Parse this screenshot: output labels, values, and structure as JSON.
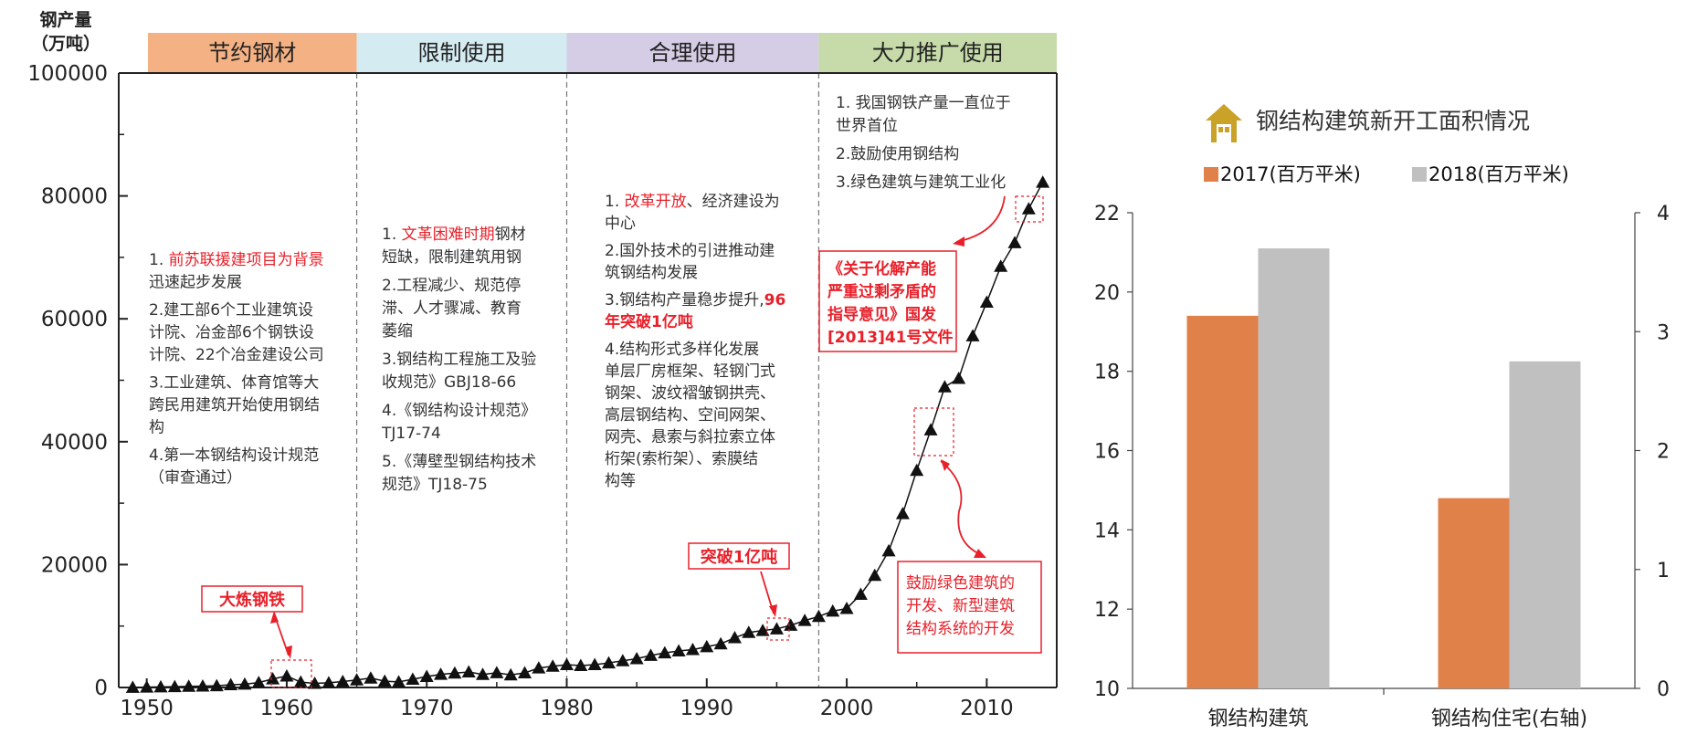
{
  "chart_data": [
    {
      "type": "scatter",
      "ylabel_line1": "钢产量",
      "ylabel_line2": "（万吨）",
      "yticks": [
        "0",
        "20000",
        "40000",
        "60000",
        "80000",
        "100000"
      ],
      "xticks": [
        "1950",
        "1960",
        "1970",
        "1980",
        "1990",
        "2000",
        "2010"
      ],
      "xlim": [
        1948,
        2015
      ],
      "ylim": [
        0,
        100000
      ],
      "marker": "triangle",
      "periods": [
        {
          "label": "节约钢材",
          "start": 1948,
          "end": 1965,
          "color": "#f4b183"
        },
        {
          "label": "限制使用",
          "start": 1965,
          "end": 1980,
          "color": "#d4ebf2"
        },
        {
          "label": "合理使用",
          "start": 1980,
          "end": 1998,
          "color": "#d5cce6"
        },
        {
          "label": "大力推广使用",
          "start": 1998,
          "end": 2015,
          "color": "#c6dba9"
        }
      ],
      "notes": {
        "p1": [
          [
            {
              "t": "1. ",
              "s": "n"
            },
            {
              "t": "前苏联援建项目为背景",
              "s": "r"
            }
          ],
          [
            {
              "t": "迅速起步发展",
              "s": "n"
            }
          ],
          [
            {
              "t": "2.建工部6个工业建筑设",
              "s": "n"
            }
          ],
          [
            {
              "t": "计院、冶金部6个钢铁设",
              "s": "n"
            }
          ],
          [
            {
              "t": "计院、22个冶金建设公司",
              "s": "n"
            }
          ],
          [
            {
              "t": "3.工业建筑、体育馆等大",
              "s": "n"
            }
          ],
          [
            {
              "t": "跨民用建筑开始使用钢结",
              "s": "n"
            }
          ],
          [
            {
              "t": "构",
              "s": "n"
            }
          ],
          [
            {
              "t": "4.第一本钢结构设计规范",
              "s": "n"
            }
          ],
          [
            {
              "t": "（审查通过）",
              "s": "n"
            }
          ]
        ],
        "p2": [
          [
            {
              "t": "1. ",
              "s": "n"
            },
            {
              "t": "文革困难时期",
              "s": "r"
            },
            {
              "t": "钢材",
              "s": "n"
            }
          ],
          [
            {
              "t": "短缺，限制建筑用钢",
              "s": "n"
            }
          ],
          [
            {
              "t": "2.工程减少、规范停",
              "s": "n"
            }
          ],
          [
            {
              "t": "滞、人才骤减、教育",
              "s": "n"
            }
          ],
          [
            {
              "t": "萎缩",
              "s": "n"
            }
          ],
          [
            {
              "t": "3.钢结构工程施工及验",
              "s": "n"
            }
          ],
          [
            {
              "t": "收规范》GBJ18-66",
              "s": "n"
            }
          ],
          [
            {
              "t": "4.《钢结构设计规范》",
              "s": "n"
            }
          ],
          [
            {
              "t": "TJ17-74",
              "s": "n"
            }
          ],
          [
            {
              "t": "5.《薄壁型钢结构技术",
              "s": "n"
            }
          ],
          [
            {
              "t": "规范》TJ18-75",
              "s": "n"
            }
          ]
        ],
        "p3": [
          [
            {
              "t": "1. ",
              "s": "n"
            },
            {
              "t": "改革开放",
              "s": "r"
            },
            {
              "t": "、经济建设为",
              "s": "n"
            }
          ],
          [
            {
              "t": "中心",
              "s": "n"
            }
          ],
          [
            {
              "t": "2.国外技术的引进推动建",
              "s": "n"
            }
          ],
          [
            {
              "t": "筑钢结构发展",
              "s": "n"
            }
          ],
          [
            {
              "t": "3.钢结构产量稳步提升,",
              "s": "n"
            },
            {
              "t": "96",
              "s": "b"
            }
          ],
          [
            {
              "t": "年突破1亿吨",
              "s": "b"
            }
          ],
          [
            {
              "t": "4.结构形式多样化发展",
              "s": "n"
            }
          ],
          [
            {
              "t": "单层厂房框架、轻钢门式",
              "s": "n"
            }
          ],
          [
            {
              "t": "钢架、波纹褶皱钢拱壳、",
              "s": "n"
            }
          ],
          [
            {
              "t": "高层钢结构、空间网架、",
              "s": "n"
            }
          ],
          [
            {
              "t": "网壳、悬索与斜拉索立体",
              "s": "n"
            }
          ],
          [
            {
              "t": "桁架(索桁架）、索膜结",
              "s": "n"
            }
          ],
          [
            {
              "t": "构等",
              "s": "n"
            }
          ]
        ],
        "p4": [
          [
            {
              "t": "1. 我国钢铁产量一直位于",
              "s": "n"
            }
          ],
          [
            {
              "t": "世界首位",
              "s": "n"
            }
          ],
          [
            {
              "t": "2.鼓励使用钢结构",
              "s": "n"
            }
          ],
          [
            {
              "t": "3.绿色建筑与建筑工业化",
              "s": "n"
            }
          ]
        ]
      },
      "callouts": {
        "dalian": "大炼钢铁",
        "tupo": "突破1亿吨",
        "policy": [
          "《关于化解产能",
          "严重过剩矛盾的",
          "指导意见》国发",
          "[2013]41号文件"
        ],
        "green": [
          "鼓励绿色建筑的",
          "开发、新型建筑",
          "结构系统的开发"
        ]
      },
      "x": [
        1949,
        1950,
        1951,
        1952,
        1953,
        1954,
        1955,
        1956,
        1957,
        1958,
        1959,
        1960,
        1961,
        1962,
        1963,
        1964,
        1965,
        1966,
        1967,
        1968,
        1969,
        1970,
        1971,
        1972,
        1973,
        1974,
        1975,
        1976,
        1977,
        1978,
        1979,
        1980,
        1981,
        1982,
        1983,
        1984,
        1985,
        1986,
        1987,
        1988,
        1989,
        1990,
        1991,
        1992,
        1993,
        1994,
        1995,
        1996,
        1997,
        1998,
        1999,
        2000,
        2001,
        2002,
        2003,
        2004,
        2005,
        2006,
        2007,
        2008,
        2009,
        2010,
        2011,
        2012,
        2013,
        2014
      ],
      "y": [
        16,
        61,
        90,
        135,
        177,
        222,
        285,
        447,
        535,
        800,
        1387,
        1866,
        870,
        667,
        762,
        964,
        1223,
        1532,
        1029,
        904,
        1333,
        1779,
        2132,
        2338,
        2522,
        2112,
        2390,
        2046,
        2374,
        3178,
        3448,
        3712,
        3560,
        3716,
        4002,
        4347,
        4679,
        5220,
        5628,
        5943,
        6159,
        6635,
        7100,
        8094,
        8956,
        9261,
        9536,
        10124,
        10894,
        11559,
        12426,
        12850,
        15163,
        18237,
        22234,
        28291,
        35324,
        41915,
        48929,
        50306,
        57218,
        62696,
        68528,
        72388,
        77904,
        82231
      ]
    },
    {
      "type": "bar",
      "title": "钢结构建筑新开工面积情况",
      "icon": "house-icon",
      "categories": [
        "钢结构建筑",
        "钢结构住宅(右轴)"
      ],
      "series": [
        {
          "name": "2017(百万平米)",
          "color": "#e0814a",
          "values": [
            19.4,
            1.6
          ]
        },
        {
          "name": "2018(百万平米)",
          "color": "#c0c0c0",
          "values": [
            21.1,
            2.75
          ]
        }
      ],
      "left_axis": {
        "ticks": [
          "10",
          "12",
          "14",
          "16",
          "18",
          "20",
          "22"
        ],
        "ylim": [
          10,
          22
        ]
      },
      "right_axis": {
        "ticks": [
          "0",
          "1",
          "2",
          "3",
          "4"
        ],
        "ylim": [
          0,
          4
        ]
      },
      "secondary_axis_category": 1
    }
  ]
}
